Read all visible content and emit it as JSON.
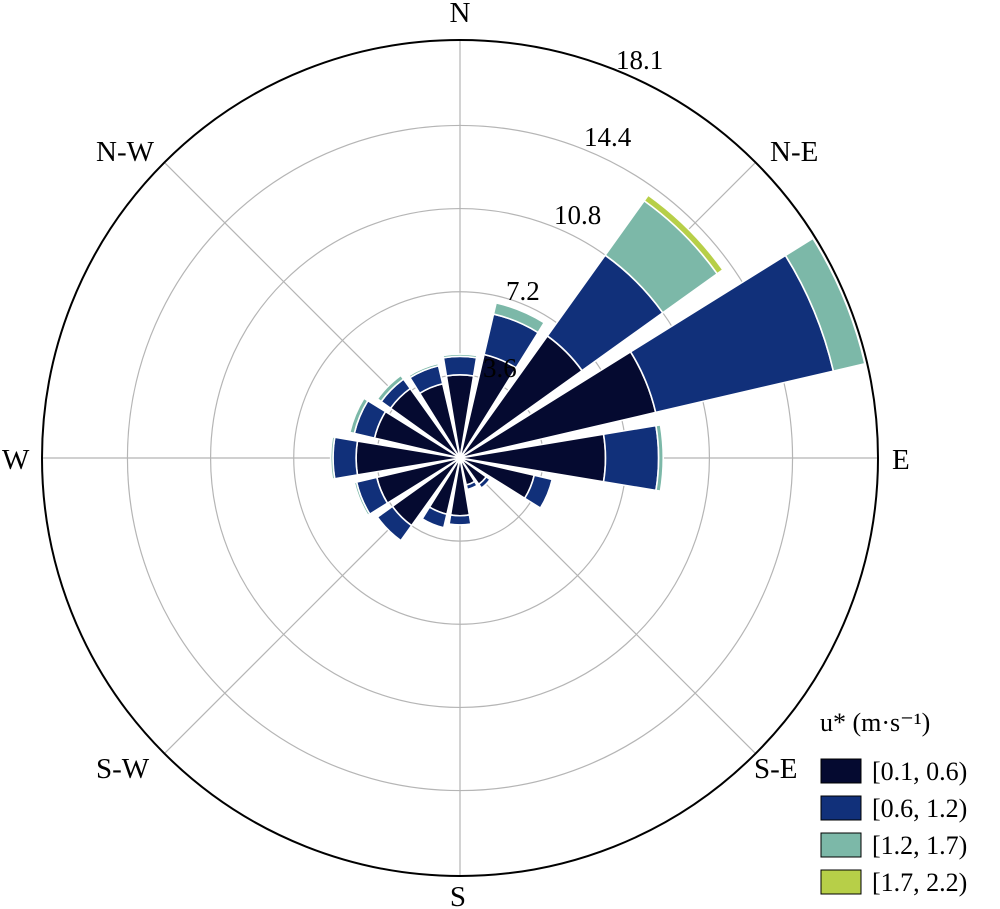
{
  "chart_data": {
    "type": "windrose",
    "directions": [
      "N",
      "N-E",
      "E",
      "S-E",
      "S",
      "S-W",
      "W",
      "N-W"
    ],
    "radial_ticks": [
      "3.6",
      "7.2",
      "10.8",
      "14.4",
      "18.1"
    ],
    "rmax": 18.1,
    "legend_title": "u* (m·s⁻¹)",
    "legend_entries": [
      "[0.1, 0.6)",
      "[0.6, 1.2)",
      "[1.2, 1.7)",
      "[1.7, 2.2)"
    ],
    "colors": [
      "#050a30",
      "#11307a",
      "#7cb8a8",
      "#b7cf48"
    ],
    "sectors": [
      {
        "angle": 0,
        "values": [
          3.6,
          0.8,
          0.1,
          0.0
        ]
      },
      {
        "angle": 22.5,
        "values": [
          4.6,
          1.8,
          0.5,
          0.0
        ]
      },
      {
        "angle": 45,
        "values": [
          6.5,
          4.3,
          2.9,
          0.3
        ]
      },
      {
        "angle": 67.5,
        "values": [
          8.7,
          7.9,
          1.4,
          0.0
        ]
      },
      {
        "angle": 90,
        "values": [
          6.3,
          2.3,
          0.2,
          0.0
        ]
      },
      {
        "angle": 112.5,
        "values": [
          3.3,
          0.8,
          0.0,
          0.0
        ]
      },
      {
        "angle": 135,
        "values": [
          1.4,
          0.2,
          0.0,
          0.0
        ]
      },
      {
        "angle": 157.5,
        "values": [
          1.2,
          0.2,
          0.0,
          0.0
        ]
      },
      {
        "angle": 180,
        "values": [
          2.5,
          0.4,
          0.0,
          0.0
        ]
      },
      {
        "angle": 202.5,
        "values": [
          2.5,
          0.6,
          0.0,
          0.0
        ]
      },
      {
        "angle": 225,
        "values": [
          3.6,
          0.8,
          0.0,
          0.0
        ]
      },
      {
        "angle": 247.5,
        "values": [
          3.7,
          0.9,
          0.1,
          0.0
        ]
      },
      {
        "angle": 270,
        "values": [
          4.5,
          1.0,
          0.1,
          0.0
        ]
      },
      {
        "angle": 292.5,
        "values": [
          3.8,
          0.9,
          0.2,
          0.0
        ]
      },
      {
        "angle": 315,
        "values": [
          3.7,
          0.5,
          0.2,
          0.0
        ]
      },
      {
        "angle": 337.5,
        "values": [
          3.3,
          0.8,
          0.1,
          0.0
        ]
      }
    ]
  }
}
